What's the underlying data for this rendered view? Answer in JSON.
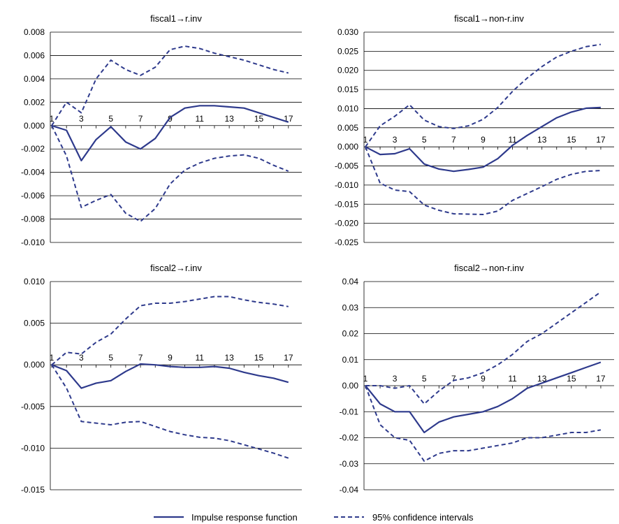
{
  "chart_data": [
    {
      "type": "line",
      "title": "fiscal1→r.inv",
      "x": [
        1,
        2,
        3,
        4,
        5,
        6,
        7,
        8,
        9,
        10,
        11,
        12,
        13,
        14,
        15,
        16,
        17
      ],
      "xticks": [
        1,
        3,
        5,
        7,
        9,
        11,
        13,
        15,
        17
      ],
      "yticks": [
        "0.008",
        "0.006",
        "0.004",
        "0.002",
        "0.000",
        "-0.002",
        "-0.004",
        "-0.006",
        "-0.008",
        "-0.010"
      ],
      "ylim": [
        -0.01,
        0.008
      ],
      "grid": true,
      "series": [
        {
          "name": "Impulse response function",
          "style": "solid",
          "values": [
            0.0,
            -0.0004,
            -0.003,
            -0.0012,
            -0.0001,
            -0.0014,
            -0.002,
            -0.0011,
            0.0007,
            0.0015,
            0.0017,
            0.0017,
            0.0016,
            0.0015,
            0.0011,
            0.0007,
            0.0003
          ]
        },
        {
          "name": "95% confidence intervals",
          "style": "dashed",
          "values": [
            0.0,
            0.002,
            0.0011,
            0.004,
            0.0056,
            0.0048,
            0.0043,
            0.005,
            0.0065,
            0.0068,
            0.0066,
            0.0062,
            0.0059,
            0.0056,
            0.0052,
            0.0048,
            0.0045
          ]
        },
        {
          "name": "95% confidence intervals",
          "style": "dashed",
          "values": [
            0.0,
            -0.0026,
            -0.007,
            -0.0064,
            -0.0059,
            -0.0075,
            -0.0082,
            -0.0071,
            -0.005,
            -0.0038,
            -0.0032,
            -0.0028,
            -0.0026,
            -0.0025,
            -0.0028,
            -0.0034,
            -0.0039
          ]
        }
      ]
    },
    {
      "type": "line",
      "title": "fiscal1→non-r.inv",
      "x": [
        1,
        2,
        3,
        4,
        5,
        6,
        7,
        8,
        9,
        10,
        11,
        12,
        13,
        14,
        15,
        16,
        17
      ],
      "xticks": [
        1,
        3,
        5,
        7,
        9,
        11,
        13,
        15,
        17
      ],
      "yticks": [
        "0.030",
        "0.025",
        "0.020",
        "0.015",
        "0.010",
        "0.005",
        "0.000",
        "-0.005",
        "-0.010",
        "-0.015",
        "-0.020",
        "-0.025"
      ],
      "ylim": [
        -0.025,
        0.03
      ],
      "grid": true,
      "series": [
        {
          "name": "Impulse response function",
          "style": "solid",
          "values": [
            0.0,
            -0.002,
            -0.0018,
            -0.0005,
            -0.0045,
            -0.0058,
            -0.0064,
            -0.0059,
            -0.0053,
            -0.0031,
            0.0004,
            0.003,
            0.0053,
            0.0076,
            0.0091,
            0.0101,
            0.0103
          ]
        },
        {
          "name": "95% confidence intervals",
          "style": "dashed",
          "values": [
            0.0,
            0.0055,
            0.008,
            0.011,
            0.007,
            0.0053,
            0.0048,
            0.0055,
            0.0072,
            0.0103,
            0.0145,
            0.018,
            0.021,
            0.0235,
            0.025,
            0.0262,
            0.0268
          ]
        },
        {
          "name": "95% confidence intervals",
          "style": "dashed",
          "values": [
            0.0,
            -0.0095,
            -0.0113,
            -0.0117,
            -0.0152,
            -0.0166,
            -0.0175,
            -0.0176,
            -0.0177,
            -0.0168,
            -0.014,
            -0.0122,
            -0.0104,
            -0.0085,
            -0.0072,
            -0.0064,
            -0.0062
          ]
        }
      ]
    },
    {
      "type": "line",
      "title": "fiscal2→r.inv",
      "x": [
        1,
        2,
        3,
        4,
        5,
        6,
        7,
        8,
        9,
        10,
        11,
        12,
        13,
        14,
        15,
        16,
        17
      ],
      "xticks": [
        1,
        3,
        5,
        7,
        9,
        11,
        13,
        15,
        17
      ],
      "yticks": [
        "0.010",
        "0.005",
        "0.000",
        "-0.005",
        "-0.010",
        "-0.015"
      ],
      "ylim": [
        -0.015,
        0.01
      ],
      "grid": true,
      "series": [
        {
          "name": "Impulse response function",
          "style": "solid",
          "values": [
            0.0,
            -0.0007,
            -0.0028,
            -0.0022,
            -0.0019,
            -0.0008,
            0.0001,
            0.0,
            -0.0002,
            -0.0003,
            -0.0003,
            -0.0002,
            -0.0004,
            -0.0009,
            -0.0013,
            -0.0016,
            -0.0021
          ]
        },
        {
          "name": "95% confidence intervals",
          "style": "dashed",
          "values": [
            0.0,
            0.0015,
            0.0013,
            0.0027,
            0.0037,
            0.0055,
            0.0071,
            0.0074,
            0.0074,
            0.0076,
            0.0079,
            0.0082,
            0.0082,
            0.0078,
            0.0075,
            0.0073,
            0.007
          ]
        },
        {
          "name": "95% confidence intervals",
          "style": "dashed",
          "values": [
            0.0,
            -0.0028,
            -0.0068,
            -0.007,
            -0.0072,
            -0.0069,
            -0.0068,
            -0.0074,
            -0.008,
            -0.0084,
            -0.0087,
            -0.0088,
            -0.0091,
            -0.0096,
            -0.0101,
            -0.0106,
            -0.0112
          ]
        }
      ]
    },
    {
      "type": "line",
      "title": "fiscal2→non-r.inv",
      "x": [
        1,
        2,
        3,
        4,
        5,
        6,
        7,
        8,
        9,
        10,
        11,
        12,
        13,
        14,
        15,
        16,
        17
      ],
      "xticks": [
        1,
        3,
        5,
        7,
        9,
        11,
        13,
        15,
        17
      ],
      "yticks": [
        "0.04",
        "0.03",
        "0.02",
        "0.01",
        "0.00",
        "-0.01",
        "-0.02",
        "-0.03",
        "-0.04"
      ],
      "ylim": [
        -0.04,
        0.04
      ],
      "grid": true,
      "series": [
        {
          "name": "Impulse response function",
          "style": "solid",
          "values": [
            0.0,
            -0.007,
            -0.01,
            -0.01,
            -0.018,
            -0.014,
            -0.012,
            -0.011,
            -0.01,
            -0.008,
            -0.005,
            -0.001,
            0.001,
            0.003,
            0.005,
            0.007,
            0.009
          ]
        },
        {
          "name": "95% confidence intervals",
          "style": "dashed",
          "values": [
            0.0,
            0.0,
            -0.001,
            -0.0,
            -0.007,
            -0.002,
            0.002,
            0.003,
            0.005,
            0.008,
            0.012,
            0.017,
            0.02,
            0.024,
            0.028,
            0.032,
            0.036
          ]
        },
        {
          "name": "95% confidence intervals",
          "style": "dashed",
          "values": [
            0.0,
            -0.015,
            -0.02,
            -0.021,
            -0.029,
            -0.026,
            -0.025,
            -0.025,
            -0.024,
            -0.023,
            -0.022,
            -0.02,
            -0.02,
            -0.019,
            -0.018,
            -0.018,
            -0.017
          ]
        }
      ]
    }
  ],
  "legend": {
    "placement": "bottom-center",
    "solid_label": "Impulse response function",
    "dashed_label": "95% confidence intervals"
  },
  "colors": {
    "line": "#2e3a8c",
    "grid": "#000000"
  }
}
